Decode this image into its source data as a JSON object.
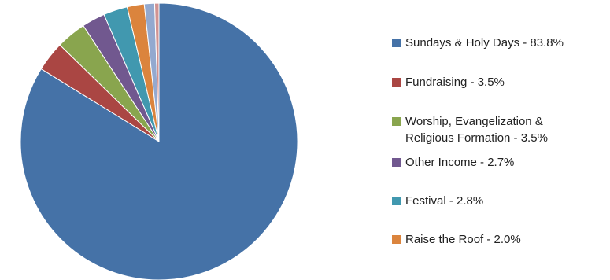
{
  "chart_data": {
    "type": "pie",
    "title": "",
    "slices": [
      {
        "label": "Sundays & Holy Days - 83.8%",
        "value": 83.8,
        "color": "#4572A7"
      },
      {
        "label": "Fundraising - 3.5%",
        "value": 3.5,
        "color": "#AA4643"
      },
      {
        "label": "Worship, Evangelization &\nReligious Formation - 3.5%",
        "value": 3.5,
        "color": "#89A54E"
      },
      {
        "label": "Other Income - 2.7%",
        "value": 2.7,
        "color": "#71588F"
      },
      {
        "label": "Festival - 2.8%",
        "value": 2.8,
        "color": "#4198AF"
      },
      {
        "label": "Raise the Roof - 2.0%",
        "value": 2.0,
        "color": "#DB843D"
      },
      {
        "label": "",
        "value": 1.2,
        "color": "#93A9CF"
      },
      {
        "label": "",
        "value": 0.5,
        "color": "#D19392"
      }
    ],
    "legend_placement": "right"
  }
}
